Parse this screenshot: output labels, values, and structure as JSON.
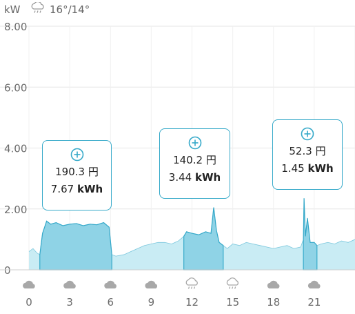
{
  "header": {
    "unit_label": "kW",
    "weather_icon": "rain-cloud-icon",
    "temperature": "16°/14°"
  },
  "colors": {
    "accent": "#35a9c9",
    "fill_dark": "#8fd3e6",
    "fill_light": "#c9ecf4",
    "line": "#35a9c9",
    "grid": "#e6e6e6",
    "icon": "#a8a8a8"
  },
  "chart_data": {
    "type": "area",
    "ylabel": "kW",
    "ylim": [
      0,
      8
    ],
    "y_ticks": [
      "8.00",
      "6.00",
      "4.00",
      "2.00",
      "0"
    ],
    "x_ticks": [
      "0",
      "3",
      "6",
      "9",
      "12",
      "15",
      "18",
      "21"
    ],
    "xlim": [
      0,
      24
    ],
    "weather_icons": [
      "cloud",
      "cloud",
      "cloud",
      "cloud",
      "rain",
      "rain",
      "cloud",
      "cloud"
    ],
    "highlight_segments": [
      {
        "start": 0.8,
        "end": 6.1,
        "cost": "190.3",
        "cost_unit": "円",
        "energy": "7.67",
        "energy_unit": "kWh"
      },
      {
        "start": 11.4,
        "end": 14.3,
        "cost": "140.2",
        "cost_unit": "円",
        "energy": "3.44",
        "energy_unit": "kWh"
      },
      {
        "start": 20.2,
        "end": 21.2,
        "cost": "52.3",
        "cost_unit": "円",
        "energy": "1.45",
        "energy_unit": "kWh"
      }
    ],
    "series": [
      {
        "x": [
          0,
          0.3,
          0.6,
          0.8,
          1.0,
          1.3,
          1.6,
          2.0,
          2.5,
          3.0,
          3.5,
          4.0,
          4.5,
          5.0,
          5.5,
          5.9,
          6.1,
          6.4,
          7.0,
          7.5,
          8.0,
          8.5,
          9.0,
          9.5,
          10.0,
          10.5,
          11.0,
          11.4,
          11.6,
          12.0,
          12.5,
          13.0,
          13.4,
          13.6,
          13.8,
          14.0,
          14.3,
          14.6,
          15.0,
          15.5,
          16.0,
          16.5,
          17.0,
          17.5,
          18.0,
          18.5,
          19.0,
          19.5,
          20.0,
          20.2,
          20.25,
          20.35,
          20.5,
          20.7,
          21.0,
          21.2,
          21.5,
          22.0,
          22.5,
          23.0,
          23.5,
          24.0
        ],
        "y": [
          0.6,
          0.7,
          0.55,
          0.5,
          1.2,
          1.6,
          1.5,
          1.55,
          1.45,
          1.5,
          1.52,
          1.45,
          1.5,
          1.48,
          1.55,
          1.4,
          0.5,
          0.45,
          0.5,
          0.6,
          0.7,
          0.8,
          0.85,
          0.9,
          0.9,
          0.85,
          0.95,
          1.1,
          1.25,
          1.2,
          1.15,
          1.25,
          1.2,
          2.05,
          1.3,
          0.9,
          0.8,
          0.7,
          0.85,
          0.8,
          0.9,
          0.85,
          0.8,
          0.75,
          0.7,
          0.75,
          0.8,
          0.7,
          0.75,
          1.0,
          2.35,
          1.1,
          1.7,
          0.9,
          0.9,
          0.8,
          0.85,
          0.9,
          0.85,
          0.95,
          0.9,
          1.0
        ]
      }
    ]
  }
}
